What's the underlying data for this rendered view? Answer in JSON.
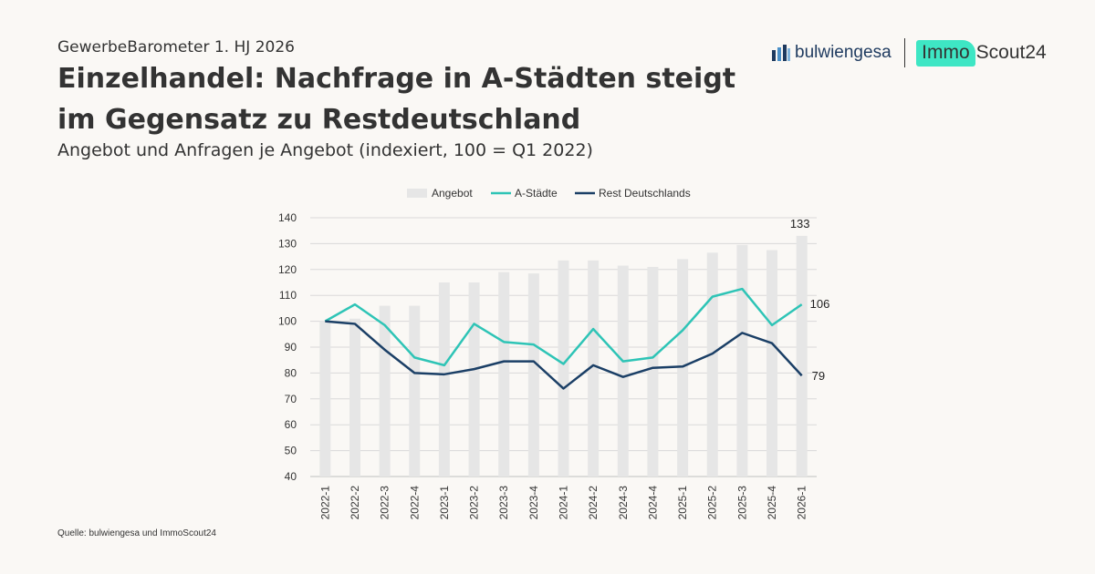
{
  "header": {
    "kicker": "GewerbeBarometer 1. HJ 2026",
    "title_line1": "Einzelhandel: Nachfrage in A-Städten steigt",
    "title_line2": "im Gegensatz zu Restdeutschland",
    "subtitle": "Angebot und Anfragen je Angebot (indexiert, 100 = Q1 2022)"
  },
  "logos": {
    "bulwiengesa": "bulwiengesa",
    "immo": "Immo",
    "scout": "Scout24"
  },
  "source": "Quelle: bulwiengesa und ImmoScout24",
  "colors": {
    "bar": "#e6e6e6",
    "a_staedte": "#2ec4b6",
    "rest": "#1b3f66",
    "grid": "#d9d9d9"
  },
  "chart_data": {
    "type": "bar",
    "categories": [
      "2022-1",
      "2022-2",
      "2022-3",
      "2022-4",
      "2023-1",
      "2023-2",
      "2023-3",
      "2023-4",
      "2024-1",
      "2024-2",
      "2024-3",
      "2024-4",
      "2025-1",
      "2025-2",
      "2025-3",
      "2025-4",
      "2026-1"
    ],
    "ylim": [
      40,
      140
    ],
    "yticks": [
      40,
      50,
      60,
      70,
      80,
      90,
      100,
      110,
      120,
      130,
      140
    ],
    "legend_position": "top",
    "grid": true,
    "series": [
      {
        "name": "Angebot",
        "type": "bar",
        "values": [
          100,
          101,
          106,
          106,
          115,
          115,
          119,
          118.5,
          123.5,
          123.5,
          121.5,
          121,
          124,
          126.5,
          129.5,
          127.5,
          133
        ]
      },
      {
        "name": "A-Städte",
        "type": "line",
        "values": [
          100,
          106.5,
          98.5,
          86,
          83,
          99,
          92,
          91,
          83.5,
          97,
          84.5,
          86,
          96.5,
          109.5,
          112.5,
          98.5,
          106.5
        ]
      },
      {
        "name": "Rest Deutschlands",
        "type": "line",
        "values": [
          100,
          99,
          89,
          80,
          79.5,
          81.5,
          84.5,
          84.5,
          74,
          83,
          78.5,
          82,
          82.5,
          87.5,
          95.5,
          91.5,
          79
        ]
      }
    ],
    "data_labels": [
      "133",
      "106",
      "79"
    ]
  }
}
